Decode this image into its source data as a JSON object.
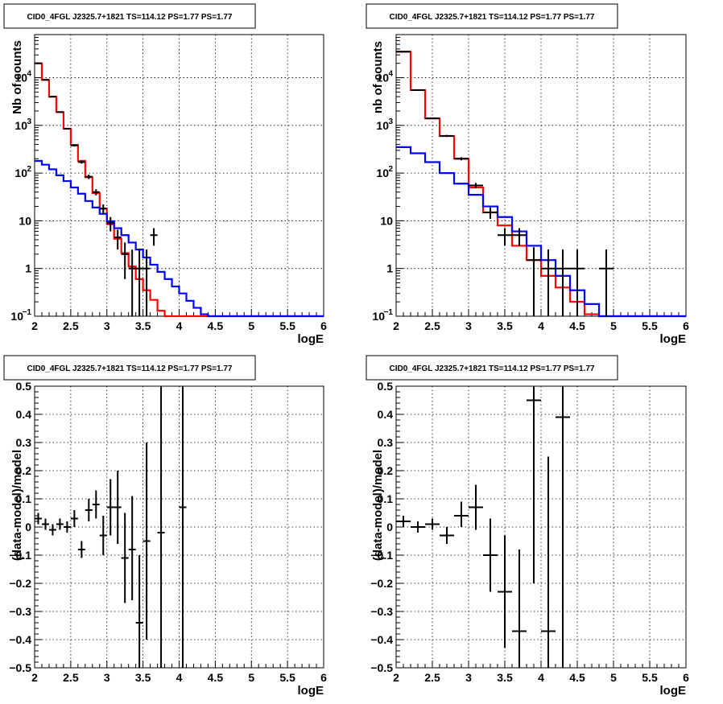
{
  "chart_data": [
    {
      "type": "line",
      "title": "CID0_4FGL J2325.7+1821 TS=114.12 PS=1.77 PS=1.77",
      "xlabel": "logE",
      "ylabel": "Nb of counts",
      "xlim": [
        2,
        6
      ],
      "ylim": [
        0.1,
        80000
      ],
      "yscale": "log",
      "grid": true,
      "x_ticks": [
        "2",
        "2.5",
        "3",
        "3.5",
        "4",
        "4.5",
        "5",
        "5.5",
        "6"
      ],
      "y_ticks": [
        {
          "v": 0.1,
          "label": "10",
          "sup": "−1"
        },
        {
          "v": 1,
          "label": "1",
          "sup": ""
        },
        {
          "v": 10,
          "label": "10",
          "sup": ""
        },
        {
          "v": 100,
          "label": "10",
          "sup": "2"
        },
        {
          "v": 1000,
          "label": "10",
          "sup": "3"
        },
        {
          "v": 10000,
          "label": "10",
          "sup": "4"
        }
      ],
      "series": [
        {
          "color": "#ff0000",
          "kind": "step",
          "edges": [
            2.0,
            2.1,
            2.2,
            2.3,
            2.4,
            2.5,
            2.6,
            2.7,
            2.8,
            2.9,
            3.0,
            3.1,
            3.2,
            3.3,
            3.4,
            3.5,
            3.6,
            3.7,
            3.8,
            3.9,
            4.0,
            4.1,
            4.2,
            4.3,
            4.4,
            4.5,
            4.6,
            4.7,
            4.8,
            4.9,
            5.0,
            5.1,
            5.2,
            5.3,
            5.4,
            5.5,
            5.6,
            5.7,
            5.8,
            5.9,
            6.0
          ],
          "values": [
            20000,
            9000,
            4000,
            1900,
            850,
            390,
            180,
            82,
            38,
            18,
            8.5,
            4.2,
            2.1,
            1.1,
            0.6,
            0.35,
            0.22,
            0.13,
            0.1,
            0.1,
            0.1,
            0.1,
            0.1,
            0.1,
            0.1,
            0.1,
            0.1,
            0.1,
            0.1,
            0.1,
            0.1,
            0.1,
            0.1,
            0.1,
            0.1,
            0.1,
            0.1,
            0.1,
            0.1,
            0.1
          ]
        },
        {
          "color": "#0000ff",
          "kind": "step",
          "edges": [
            2.0,
            2.1,
            2.2,
            2.3,
            2.4,
            2.5,
            2.6,
            2.7,
            2.8,
            2.9,
            3.0,
            3.1,
            3.2,
            3.3,
            3.4,
            3.5,
            3.6,
            3.7,
            3.8,
            3.9,
            4.0,
            4.1,
            4.2,
            4.3,
            4.4,
            4.5,
            4.6,
            4.7,
            4.8,
            4.9,
            5.0,
            5.1,
            5.2,
            5.3,
            5.4,
            5.5,
            5.6,
            5.7,
            5.8,
            5.9,
            6.0
          ],
          "values": [
            180,
            150,
            120,
            90,
            68,
            50,
            37,
            26,
            19,
            14,
            9.8,
            7,
            5,
            3.5,
            2.5,
            1.7,
            1.2,
            0.85,
            0.6,
            0.42,
            0.3,
            0.21,
            0.15,
            0.11,
            0.1,
            0.1,
            0.1,
            0.1,
            0.1,
            0.1,
            0.1,
            0.1,
            0.1,
            0.1,
            0.1,
            0.1,
            0.1,
            0.1,
            0.1,
            0.1
          ]
        },
        {
          "color": "#000000",
          "kind": "errorbar",
          "xerr": 0.05,
          "points": [
            {
              "x": 2.05,
              "y": 20000,
              "lo": 19800,
              "hi": 20200
            },
            {
              "x": 2.15,
              "y": 9000,
              "lo": 8800,
              "hi": 9200
            },
            {
              "x": 2.25,
              "y": 4000,
              "lo": 3900,
              "hi": 4100
            },
            {
              "x": 2.35,
              "y": 1900,
              "lo": 1850,
              "hi": 1950
            },
            {
              "x": 2.45,
              "y": 850,
              "lo": 820,
              "hi": 880
            },
            {
              "x": 2.55,
              "y": 380,
              "lo": 360,
              "hi": 400
            },
            {
              "x": 2.65,
              "y": 170,
              "lo": 158,
              "hi": 182
            },
            {
              "x": 2.75,
              "y": 84,
              "lo": 75,
              "hi": 93
            },
            {
              "x": 2.85,
              "y": 40,
              "lo": 34,
              "hi": 46
            },
            {
              "x": 2.95,
              "y": 18,
              "lo": 14,
              "hi": 22
            },
            {
              "x": 3.05,
              "y": 9,
              "lo": 6,
              "hi": 12
            },
            {
              "x": 3.15,
              "y": 4.5,
              "lo": 2.5,
              "hi": 6.5
            },
            {
              "x": 3.25,
              "y": 2,
              "lo": 0.6,
              "hi": 3.5
            },
            {
              "x": 3.35,
              "y": 1,
              "lo": 0.1,
              "hi": 2.5
            },
            {
              "x": 3.45,
              "y": 1,
              "lo": 0.1,
              "hi": 2.5
            },
            {
              "x": 3.55,
              "y": 1,
              "lo": 0.1,
              "hi": 2.5
            },
            {
              "x": 3.65,
              "y": 5,
              "lo": 3,
              "hi": 7
            }
          ]
        }
      ]
    },
    {
      "type": "line",
      "title": "CID0_4FGL J2325.7+1821 TS=114.12 PS=1.77 PS=1.77",
      "xlabel": "logE",
      "ylabel": "nb of counts",
      "xlim": [
        2,
        6
      ],
      "ylim": [
        0.1,
        80000
      ],
      "yscale": "log",
      "grid": true,
      "x_ticks": [
        "2",
        "2.5",
        "3",
        "3.5",
        "4",
        "4.5",
        "5",
        "5.5",
        "6"
      ],
      "y_ticks": [
        {
          "v": 0.1,
          "label": "10",
          "sup": "−1"
        },
        {
          "v": 1,
          "label": "1",
          "sup": ""
        },
        {
          "v": 10,
          "label": "10",
          "sup": ""
        },
        {
          "v": 100,
          "label": "10",
          "sup": "2"
        },
        {
          "v": 1000,
          "label": "10",
          "sup": "3"
        },
        {
          "v": 10000,
          "label": "10",
          "sup": "4"
        }
      ],
      "series": [
        {
          "color": "#ff0000",
          "kind": "step",
          "edges": [
            2.0,
            2.2,
            2.4,
            2.6,
            2.8,
            3.0,
            3.2,
            3.4,
            3.6,
            3.8,
            4.0,
            4.2,
            4.4,
            4.6,
            4.8,
            5.0,
            5.2,
            5.4,
            5.6,
            5.8,
            6.0
          ],
          "values": [
            35000,
            5500,
            1400,
            600,
            200,
            50,
            15,
            8,
            3,
            1.5,
            0.7,
            0.4,
            0.2,
            0.11,
            0.1,
            0.1,
            0.1,
            0.1,
            0.1,
            0.1
          ]
        },
        {
          "color": "#0000ff",
          "kind": "step",
          "edges": [
            2.0,
            2.2,
            2.4,
            2.6,
            2.8,
            3.0,
            3.2,
            3.4,
            3.6,
            3.8,
            4.0,
            4.2,
            4.4,
            4.6,
            4.8,
            5.0,
            5.2,
            5.4,
            5.6,
            5.8,
            6.0
          ],
          "values": [
            350,
            260,
            170,
            100,
            60,
            35,
            20,
            12,
            6,
            3,
            1.5,
            0.7,
            0.35,
            0.18,
            0.1,
            0.1,
            0.1,
            0.1,
            0.1,
            0.1
          ]
        },
        {
          "color": "#000000",
          "kind": "errorbar",
          "xerr": 0.1,
          "points": [
            {
              "x": 2.1,
              "y": 35000,
              "lo": 34000,
              "hi": 36000
            },
            {
              "x": 2.3,
              "y": 5500,
              "lo": 5300,
              "hi": 5700
            },
            {
              "x": 2.5,
              "y": 1400,
              "lo": 1350,
              "hi": 1450
            },
            {
              "x": 2.7,
              "y": 600,
              "lo": 570,
              "hi": 630
            },
            {
              "x": 2.9,
              "y": 200,
              "lo": 185,
              "hi": 215
            },
            {
              "x": 3.1,
              "y": 55,
              "lo": 48,
              "hi": 62
            },
            {
              "x": 3.3,
              "y": 15,
              "lo": 11,
              "hi": 19
            },
            {
              "x": 3.5,
              "y": 5,
              "lo": 3,
              "hi": 7
            },
            {
              "x": 3.7,
              "y": 5,
              "lo": 3,
              "hi": 7
            },
            {
              "x": 3.9,
              "y": 1.5,
              "lo": 0.1,
              "hi": 2.8
            },
            {
              "x": 4.1,
              "y": 1,
              "lo": 0.1,
              "hi": 2.5
            },
            {
              "x": 4.3,
              "y": 1,
              "lo": 0.1,
              "hi": 2.5
            },
            {
              "x": 4.5,
              "y": 1,
              "lo": 0.1,
              "hi": 2.5
            },
            {
              "x": 4.9,
              "y": 1,
              "lo": 0.1,
              "hi": 2.5
            }
          ]
        }
      ]
    },
    {
      "type": "scatter",
      "title": "CID0_4FGL J2325.7+1821 TS=114.12 PS=1.77 PS=1.77",
      "xlabel": "logE",
      "ylabel": "(data-model)/model",
      "xlim": [
        2,
        6
      ],
      "ylim": [
        -0.5,
        0.5
      ],
      "yscale": "linear",
      "grid": true,
      "x_ticks": [
        "2",
        "2.5",
        "3",
        "3.5",
        "4",
        "4.5",
        "5",
        "5.5",
        "6"
      ],
      "y_ticks": [
        {
          "v": -0.5,
          "label": "−0.5"
        },
        {
          "v": -0.4,
          "label": "−0.4"
        },
        {
          "v": -0.3,
          "label": "−0.3"
        },
        {
          "v": -0.2,
          "label": "−0.2"
        },
        {
          "v": -0.1,
          "label": "−0.1"
        },
        {
          "v": 0,
          "label": "0"
        },
        {
          "v": 0.1,
          "label": "0.1"
        },
        {
          "v": 0.2,
          "label": "0.2"
        },
        {
          "v": 0.3,
          "label": "0.3"
        },
        {
          "v": 0.4,
          "label": "0.4"
        },
        {
          "v": 0.5,
          "label": "0.5"
        }
      ],
      "series": [
        {
          "color": "#000000",
          "kind": "errorbar",
          "xerr": 0.05,
          "points": [
            {
              "x": 2.05,
              "y": 0.03,
              "lo": 0.01,
              "hi": 0.05
            },
            {
              "x": 2.15,
              "y": 0.01,
              "lo": -0.01,
              "hi": 0.03
            },
            {
              "x": 2.25,
              "y": -0.01,
              "lo": -0.03,
              "hi": 0.01
            },
            {
              "x": 2.35,
              "y": 0.01,
              "lo": -0.01,
              "hi": 0.03
            },
            {
              "x": 2.45,
              "y": 0.0,
              "lo": -0.02,
              "hi": 0.02
            },
            {
              "x": 2.55,
              "y": 0.03,
              "lo": 0.0,
              "hi": 0.06
            },
            {
              "x": 2.65,
              "y": -0.08,
              "lo": -0.11,
              "hi": -0.05
            },
            {
              "x": 2.75,
              "y": 0.06,
              "lo": 0.02,
              "hi": 0.1
            },
            {
              "x": 2.85,
              "y": 0.08,
              "lo": 0.03,
              "hi": 0.13
            },
            {
              "x": 2.95,
              "y": -0.03,
              "lo": -0.1,
              "hi": 0.04
            },
            {
              "x": 3.05,
              "y": 0.07,
              "lo": -0.03,
              "hi": 0.17
            },
            {
              "x": 3.15,
              "y": 0.07,
              "lo": -0.06,
              "hi": 0.2
            },
            {
              "x": 3.25,
              "y": -0.11,
              "lo": -0.27,
              "hi": 0.05
            },
            {
              "x": 3.35,
              "y": -0.08,
              "lo": -0.26,
              "hi": 0.11
            },
            {
              "x": 3.45,
              "y": -0.34,
              "lo": -0.55,
              "hi": -0.1
            },
            {
              "x": 3.55,
              "y": -0.05,
              "lo": -0.4,
              "hi": 0.3
            },
            {
              "x": 3.75,
              "y": -0.02,
              "lo": -0.55,
              "hi": 0.55
            },
            {
              "x": 4.05,
              "y": 0.07,
              "lo": -0.55,
              "hi": 0.55
            }
          ]
        }
      ]
    },
    {
      "type": "scatter",
      "title": "CID0_4FGL J2325.7+1821 TS=114.12 PS=1.77 PS=1.77",
      "xlabel": "logE",
      "ylabel": "(data-model)/model",
      "xlim": [
        2,
        6
      ],
      "ylim": [
        -0.5,
        0.5
      ],
      "yscale": "linear",
      "grid": true,
      "x_ticks": [
        "2",
        "2.5",
        "3",
        "3.5",
        "4",
        "4.5",
        "5",
        "5.5",
        "6"
      ],
      "y_ticks": [
        {
          "v": -0.5,
          "label": "−0.5"
        },
        {
          "v": -0.4,
          "label": "−0.4"
        },
        {
          "v": -0.3,
          "label": "−0.3"
        },
        {
          "v": -0.2,
          "label": "−0.2"
        },
        {
          "v": -0.1,
          "label": "−0.1"
        },
        {
          "v": 0,
          "label": "0"
        },
        {
          "v": 0.1,
          "label": "0.1"
        },
        {
          "v": 0.2,
          "label": "0.2"
        },
        {
          "v": 0.3,
          "label": "0.3"
        },
        {
          "v": 0.4,
          "label": "0.4"
        },
        {
          "v": 0.5,
          "label": "0.5"
        }
      ],
      "series": [
        {
          "color": "#000000",
          "kind": "errorbar",
          "xerr": 0.1,
          "points": [
            {
              "x": 2.1,
              "y": 0.02,
              "lo": 0.0,
              "hi": 0.04
            },
            {
              "x": 2.3,
              "y": 0.0,
              "lo": -0.02,
              "hi": 0.02
            },
            {
              "x": 2.5,
              "y": 0.01,
              "lo": -0.01,
              "hi": 0.03
            },
            {
              "x": 2.7,
              "y": -0.03,
              "lo": -0.06,
              "hi": 0.0
            },
            {
              "x": 2.9,
              "y": 0.04,
              "lo": 0.0,
              "hi": 0.09
            },
            {
              "x": 3.1,
              "y": 0.07,
              "lo": -0.01,
              "hi": 0.15
            },
            {
              "x": 3.3,
              "y": -0.1,
              "lo": -0.23,
              "hi": 0.03
            },
            {
              "x": 3.5,
              "y": -0.23,
              "lo": -0.43,
              "hi": -0.03
            },
            {
              "x": 3.7,
              "y": -0.37,
              "lo": -0.55,
              "hi": -0.08
            },
            {
              "x": 3.9,
              "y": 0.45,
              "lo": -0.2,
              "hi": 0.55
            },
            {
              "x": 4.1,
              "y": -0.37,
              "lo": -0.55,
              "hi": 0.25
            },
            {
              "x": 4.3,
              "y": 0.39,
              "lo": -0.55,
              "hi": 0.55
            }
          ]
        }
      ]
    }
  ]
}
